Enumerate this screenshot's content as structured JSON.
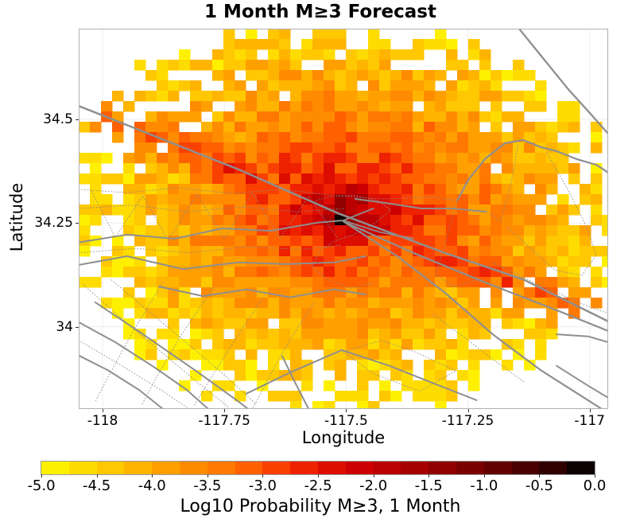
{
  "chart_data": {
    "type": "heatmap",
    "title": "1 Month M≥3 Forecast",
    "xlabel": "Longitude",
    "ylabel": "Latitude",
    "xlim": [
      -118.049,
      -116.962
    ],
    "ylim": [
      33.802,
      34.718
    ],
    "xticks": [
      -118,
      -117.75,
      -117.5,
      -117.25,
      -117
    ],
    "xtick_labels": [
      "-118",
      "-117.75",
      "-117.5",
      "-117.25",
      "-117"
    ],
    "yticks": [
      34.5,
      34.25,
      34
    ],
    "ytick_labels": [
      "34.5",
      "34.25",
      "34"
    ],
    "grid": true,
    "cell_size_deg": {
      "lon": 0.0228,
      "lat": 0.0249
    },
    "hotspot": {
      "lon": -117.514,
      "lat": 34.266,
      "log10_prob": -0.12
    },
    "colorbar": {
      "label": "Log10 Probability M≥3, 1 Month",
      "ticks": [
        -5.0,
        -4.5,
        -4.0,
        -3.5,
        -3.0,
        -2.5,
        -2.0,
        -1.5,
        -1.0,
        -0.5,
        0.0
      ],
      "tick_labels": [
        "-5.0",
        "-4.5",
        "-4.0",
        "-3.5",
        "-3.0",
        "-2.5",
        "-2.0",
        "-1.5",
        "-1.0",
        "-0.5",
        "0.0"
      ],
      "bin_width": 0.25,
      "colors": [
        "#fff000",
        "#ffdc00",
        "#ffc800",
        "#ffb400",
        "#ffa000",
        "#ff8c00",
        "#ff7800",
        "#ff6000",
        "#fa4000",
        "#ee2200",
        "#dd0d00",
        "#cc0000",
        "#ba0000",
        "#a60000",
        "#900000",
        "#7a0000",
        "#620000",
        "#4a0000",
        "#300000",
        "#0c0000"
      ]
    },
    "field": {
      "center": [
        -117.514,
        34.266
      ],
      "coslat": 0.829,
      "peak": -0.4,
      "peak_cell": -0.12,
      "radial_coeff": 5.85,
      "radial_power": 0.4,
      "dir": [
        0.866,
        -0.498
      ],
      "ridge_base": -2.4,
      "ridge_perp": 16,
      "ridge_along": 2.1,
      "north_boost": 0.18,
      "south_cut": 0.12,
      "noise": 0.85,
      "radius": 0.48,
      "seed": 20
    },
    "colors": {
      "grid": "#ededed",
      "border": "#b0b0b0",
      "fault": "#8f8f8f",
      "fault_thin": "#8a8a8a",
      "background": "#ffffff",
      "text": "#000000"
    },
    "faults": {
      "solid": [
        {
          "w": 2.5,
          "pts": [
            [
              -118.049,
              34.532
            ],
            [
              -117.721,
              34.379
            ],
            [
              -117.514,
              34.272
            ],
            [
              -117.297,
              34.178
            ],
            [
              -117.134,
              34.113
            ],
            [
              -116.962,
              34.013
            ]
          ]
        },
        {
          "w": 2.2,
          "pts": [
            [
              -117.497,
              34.249
            ],
            [
              -117.362,
              34.178
            ],
            [
              -117.215,
              34.107
            ],
            [
              -117.068,
              34.04
            ],
            [
              -116.962,
              33.99
            ]
          ]
        },
        {
          "w": 2.2,
          "pts": [
            [
              -117.506,
              34.254
            ],
            [
              -117.395,
              34.17
            ],
            [
              -117.297,
              34.082
            ],
            [
              -117.199,
              33.982
            ],
            [
              -117.101,
              33.896
            ],
            [
              -116.975,
              33.802
            ]
          ]
        },
        {
          "w": 2.0,
          "pts": [
            [
              -118.049,
              34.203
            ],
            [
              -117.95,
              34.222
            ],
            [
              -117.852,
              34.212
            ],
            [
              -117.754,
              34.237
            ],
            [
              -117.656,
              34.231
            ],
            [
              -117.558,
              34.251
            ],
            [
              -117.509,
              34.256
            ]
          ]
        },
        {
          "w": 2.0,
          "pts": [
            [
              -118.049,
              34.149
            ],
            [
              -117.95,
              34.17
            ],
            [
              -117.835,
              34.139
            ],
            [
              -117.721,
              34.155
            ],
            [
              -117.623,
              34.151
            ],
            [
              -117.525,
              34.155
            ],
            [
              -117.46,
              34.17
            ]
          ]
        },
        {
          "w": 2.0,
          "pts": [
            [
              -117.481,
              34.308
            ],
            [
              -117.411,
              34.297
            ],
            [
              -117.346,
              34.285
            ],
            [
              -117.28,
              34.285
            ],
            [
              -117.212,
              34.277
            ]
          ]
        },
        {
          "w": 2.2,
          "pts": [
            [
              -117.272,
              34.304
            ],
            [
              -117.248,
              34.356
            ],
            [
              -117.215,
              34.404
            ],
            [
              -117.174,
              34.442
            ],
            [
              -117.137,
              34.45
            ],
            [
              -117.101,
              34.433
            ],
            [
              -117.068,
              34.423
            ],
            [
              -117.027,
              34.404
            ],
            [
              -116.986,
              34.39
            ],
            [
              -116.959,
              34.369
            ]
          ]
        },
        {
          "w": 2.3,
          "pts": [
            [
              -117.145,
              34.718
            ],
            [
              -117.093,
              34.643
            ],
            [
              -117.044,
              34.572
            ],
            [
              -117.003,
              34.519
            ],
            [
              -116.959,
              34.461
            ]
          ]
        },
        {
          "w": 2.0,
          "pts": [
            [
              -117.068,
              33.982
            ],
            [
              -117.003,
              33.977
            ],
            [
              -116.962,
              33.963
            ]
          ]
        },
        {
          "w": 2.0,
          "pts": [
            [
              -117.068,
              33.906
            ],
            [
              -117.003,
              33.858
            ],
            [
              -116.962,
              33.829
            ]
          ]
        },
        {
          "w": 2.0,
          "pts": [
            [
              -118.049,
              34.011
            ],
            [
              -117.974,
              33.963
            ],
            [
              -117.893,
              33.902
            ],
            [
              -117.827,
              33.848
            ],
            [
              -117.783,
              33.802
            ]
          ]
        },
        {
          "w": 2.0,
          "pts": [
            [
              -118.049,
              33.931
            ],
            [
              -117.99,
              33.896
            ],
            [
              -117.925,
              33.848
            ],
            [
              -117.876,
              33.802
            ]
          ]
        },
        {
          "w": 2.0,
          "pts": [
            [
              -118.015,
              34.059
            ],
            [
              -117.917,
              33.982
            ],
            [
              -117.811,
              33.896
            ],
            [
              -117.721,
              33.82
            ],
            [
              -117.701,
              33.802
            ]
          ]
        },
        {
          "w": 2.0,
          "pts": [
            [
              -117.884,
              34.097
            ],
            [
              -117.794,
              34.074
            ],
            [
              -117.705,
              34.09
            ],
            [
              -117.615,
              34.071
            ],
            [
              -117.525,
              34.09
            ],
            [
              -117.46,
              34.078
            ]
          ]
        },
        {
          "w": 2.0,
          "pts": [
            [
              -117.705,
              33.839
            ],
            [
              -117.615,
              33.89
            ],
            [
              -117.509,
              33.944
            ],
            [
              -117.411,
              33.906
            ],
            [
              -117.321,
              33.864
            ],
            [
              -117.232,
              33.823
            ]
          ]
        },
        {
          "w": 2.0,
          "pts": [
            [
              -117.631,
              33.929
            ],
            [
              -117.604,
              33.864
            ],
            [
              -117.577,
              33.802
            ]
          ]
        },
        {
          "w": 1.8,
          "pts": [
            [
              -117.506,
              34.256
            ],
            [
              -117.444,
              34.285
            ]
          ]
        },
        {
          "w": 1.8,
          "pts": [
            [
              -117.506,
              34.256
            ],
            [
              -117.431,
              34.228
            ],
            [
              -117.362,
              34.212
            ]
          ]
        }
      ],
      "dotted": [
        [
          [
            -118.049,
            34.331
          ],
          [
            -117.95,
            34.323
          ],
          [
            -117.843,
            34.335
          ],
          [
            -117.737,
            34.321
          ],
          [
            -117.631,
            34.331
          ],
          [
            -117.525,
            34.316
          ],
          [
            -117.427,
            34.308
          ],
          [
            -117.321,
            34.312
          ],
          [
            -117.272,
            34.304
          ]
        ],
        [
          [
            -118.049,
            34.285
          ],
          [
            -117.941,
            34.293
          ],
          [
            -117.827,
            34.277
          ],
          [
            -117.713,
            34.289
          ],
          [
            -117.599,
            34.277
          ],
          [
            -117.506,
            34.285
          ]
        ],
        [
          [
            -118.023,
            34.327
          ],
          [
            -117.974,
            34.216
          ],
          [
            -117.917,
            34.316
          ],
          [
            -117.865,
            34.208
          ],
          [
            -117.806,
            34.32
          ],
          [
            -117.75,
            34.212
          ],
          [
            -117.692,
            34.323
          ],
          [
            -117.636,
            34.212
          ],
          [
            -117.577,
            34.314
          ],
          [
            -117.519,
            34.216
          ]
        ],
        [
          [
            -118.049,
            34.178
          ],
          [
            -117.933,
            34.189
          ],
          [
            -117.819,
            34.178
          ],
          [
            -117.705,
            34.193
          ],
          [
            -117.59,
            34.186
          ],
          [
            -117.509,
            34.197
          ]
        ],
        [
          [
            -118.039,
            34.101
          ],
          [
            -117.966,
            34.025
          ],
          [
            -117.884,
            33.944
          ],
          [
            -117.806,
            33.867
          ],
          [
            -117.741,
            33.806
          ]
        ],
        [
          [
            -117.982,
            34.113
          ],
          [
            -117.904,
            34.036
          ],
          [
            -117.822,
            33.956
          ],
          [
            -117.745,
            33.879
          ],
          [
            -117.685,
            33.814
          ]
        ],
        [
          [
            -118.049,
            33.967
          ],
          [
            -117.966,
            33.91
          ],
          [
            -117.876,
            33.845
          ],
          [
            -117.827,
            33.806
          ]
        ],
        [
          [
            -117.876,
            34.107
          ],
          [
            -117.936,
            33.992
          ],
          [
            -117.985,
            33.887
          ],
          [
            -118.015,
            33.82
          ]
        ],
        [
          [
            -117.773,
            34.094
          ],
          [
            -117.839,
            33.979
          ],
          [
            -117.893,
            33.871
          ],
          [
            -117.92,
            33.81
          ]
        ],
        [
          [
            -117.664,
            34.082
          ],
          [
            -117.729,
            33.967
          ],
          [
            -117.783,
            33.867
          ],
          [
            -117.812,
            33.81
          ]
        ],
        [
          [
            -117.566,
            34.059
          ],
          [
            -117.626,
            33.948
          ],
          [
            -117.672,
            33.848
          ],
          [
            -117.692,
            33.802
          ]
        ],
        [
          [
            -117.561,
            34.304
          ],
          [
            -117.525,
            34.316
          ],
          [
            -117.48,
            34.316
          ],
          [
            -117.436,
            34.304
          ],
          [
            -117.408,
            34.281
          ],
          [
            -117.444,
            34.247
          ],
          [
            -117.485,
            34.222
          ],
          [
            -117.525,
            34.206
          ],
          [
            -117.554,
            34.183
          ],
          [
            -117.57,
            34.145
          ],
          [
            -117.537,
            34.113
          ],
          [
            -117.492,
            34.093
          ],
          [
            -117.444,
            34.105
          ]
        ],
        [
          [
            -117.147,
            34.438
          ],
          [
            -117.163,
            34.337
          ],
          [
            -117.183,
            34.254
          ],
          [
            -117.205,
            34.273
          ]
        ],
        [
          [
            -117.088,
            34.419
          ],
          [
            -117.045,
            34.331
          ],
          [
            -117.009,
            34.247
          ],
          [
            -116.986,
            34.174
          ],
          [
            -117.016,
            34.124
          ],
          [
            -117.071,
            34.136
          ],
          [
            -117.125,
            34.193
          ],
          [
            -117.169,
            34.239
          ]
        ],
        [
          [
            -117.272,
            34.304
          ],
          [
            -117.294,
            34.212
          ],
          [
            -117.316,
            34.126
          ],
          [
            -117.28,
            34.097
          ],
          [
            -117.232,
            34.113
          ]
        ],
        [
          [
            -117.506,
            33.94
          ],
          [
            -117.444,
            33.887
          ],
          [
            -117.349,
            33.845
          ],
          [
            -117.274,
            33.894
          ],
          [
            -117.359,
            33.94
          ],
          [
            -117.428,
            33.967
          ],
          [
            -117.506,
            33.94
          ]
        ],
        [
          [
            -117.321,
            34.03
          ],
          [
            -117.256,
            33.973
          ],
          [
            -117.191,
            33.915
          ],
          [
            -117.134,
            33.867
          ]
        ],
        [
          [
            -117.199,
            34.155
          ],
          [
            -117.104,
            34.101
          ],
          [
            -117.006,
            34.051
          ],
          [
            -116.962,
            34.032
          ]
        ]
      ]
    }
  }
}
